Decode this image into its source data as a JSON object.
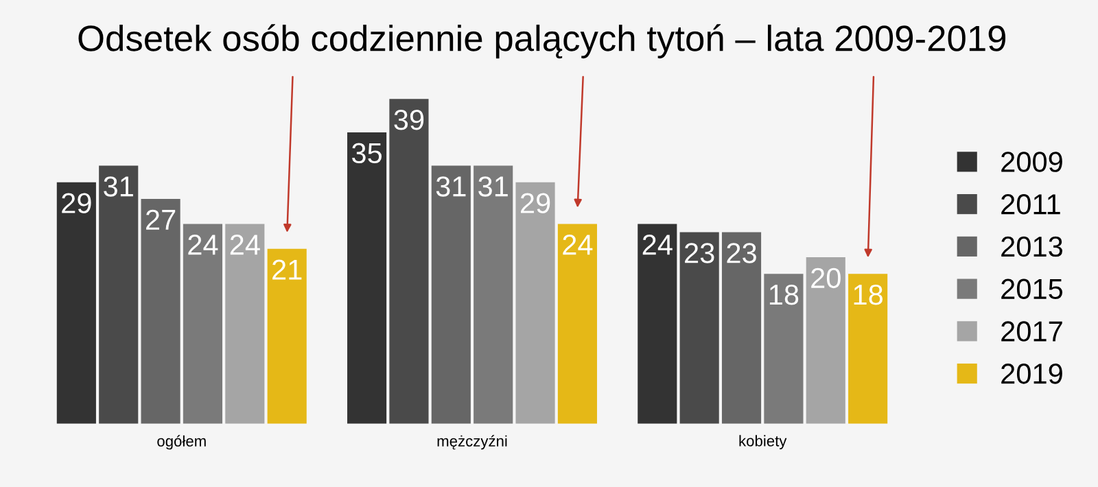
{
  "chart_data": {
    "type": "bar",
    "title": "Odsetek osób codziennie palących tytoń – lata 2009-2019",
    "categories": [
      "ogółem",
      "mężczyźni",
      "kobiety"
    ],
    "series": [
      {
        "name": "2009",
        "color": "#333333",
        "values": [
          29,
          35,
          24
        ]
      },
      {
        "name": "2011",
        "color": "#4a4a4a",
        "values": [
          31,
          39,
          23
        ]
      },
      {
        "name": "2013",
        "color": "#666666",
        "values": [
          27,
          31,
          23
        ]
      },
      {
        "name": "2015",
        "color": "#7a7a7a",
        "values": [
          24,
          31,
          18
        ]
      },
      {
        "name": "2017",
        "color": "#a5a5a5",
        "values": [
          24,
          29,
          20
        ]
      },
      {
        "name": "2019",
        "color": "#e5b817",
        "values": [
          21,
          24,
          18
        ]
      }
    ],
    "data_labels": true,
    "legend": "right",
    "grid": false
  }
}
